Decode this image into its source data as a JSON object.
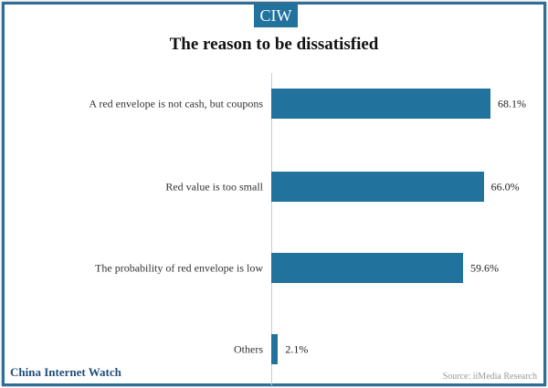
{
  "badge": "CIW",
  "brand": "China Internet Watch",
  "source": "Source: iiMedia Research",
  "chart_data": {
    "type": "bar",
    "orientation": "horizontal",
    "title": "The reason to be dissatisfied",
    "categories": [
      "A red envelope is not cash, but coupons",
      "Red value is too small",
      "The probability of red envelope is low",
      "Others"
    ],
    "values": [
      68.1,
      66.0,
      59.6,
      2.1
    ],
    "value_labels": [
      "68.1%",
      "66.0%",
      "59.6%",
      "2.1%"
    ],
    "color": "#21729c",
    "xlim": [
      0,
      68.1
    ],
    "grid": false
  }
}
